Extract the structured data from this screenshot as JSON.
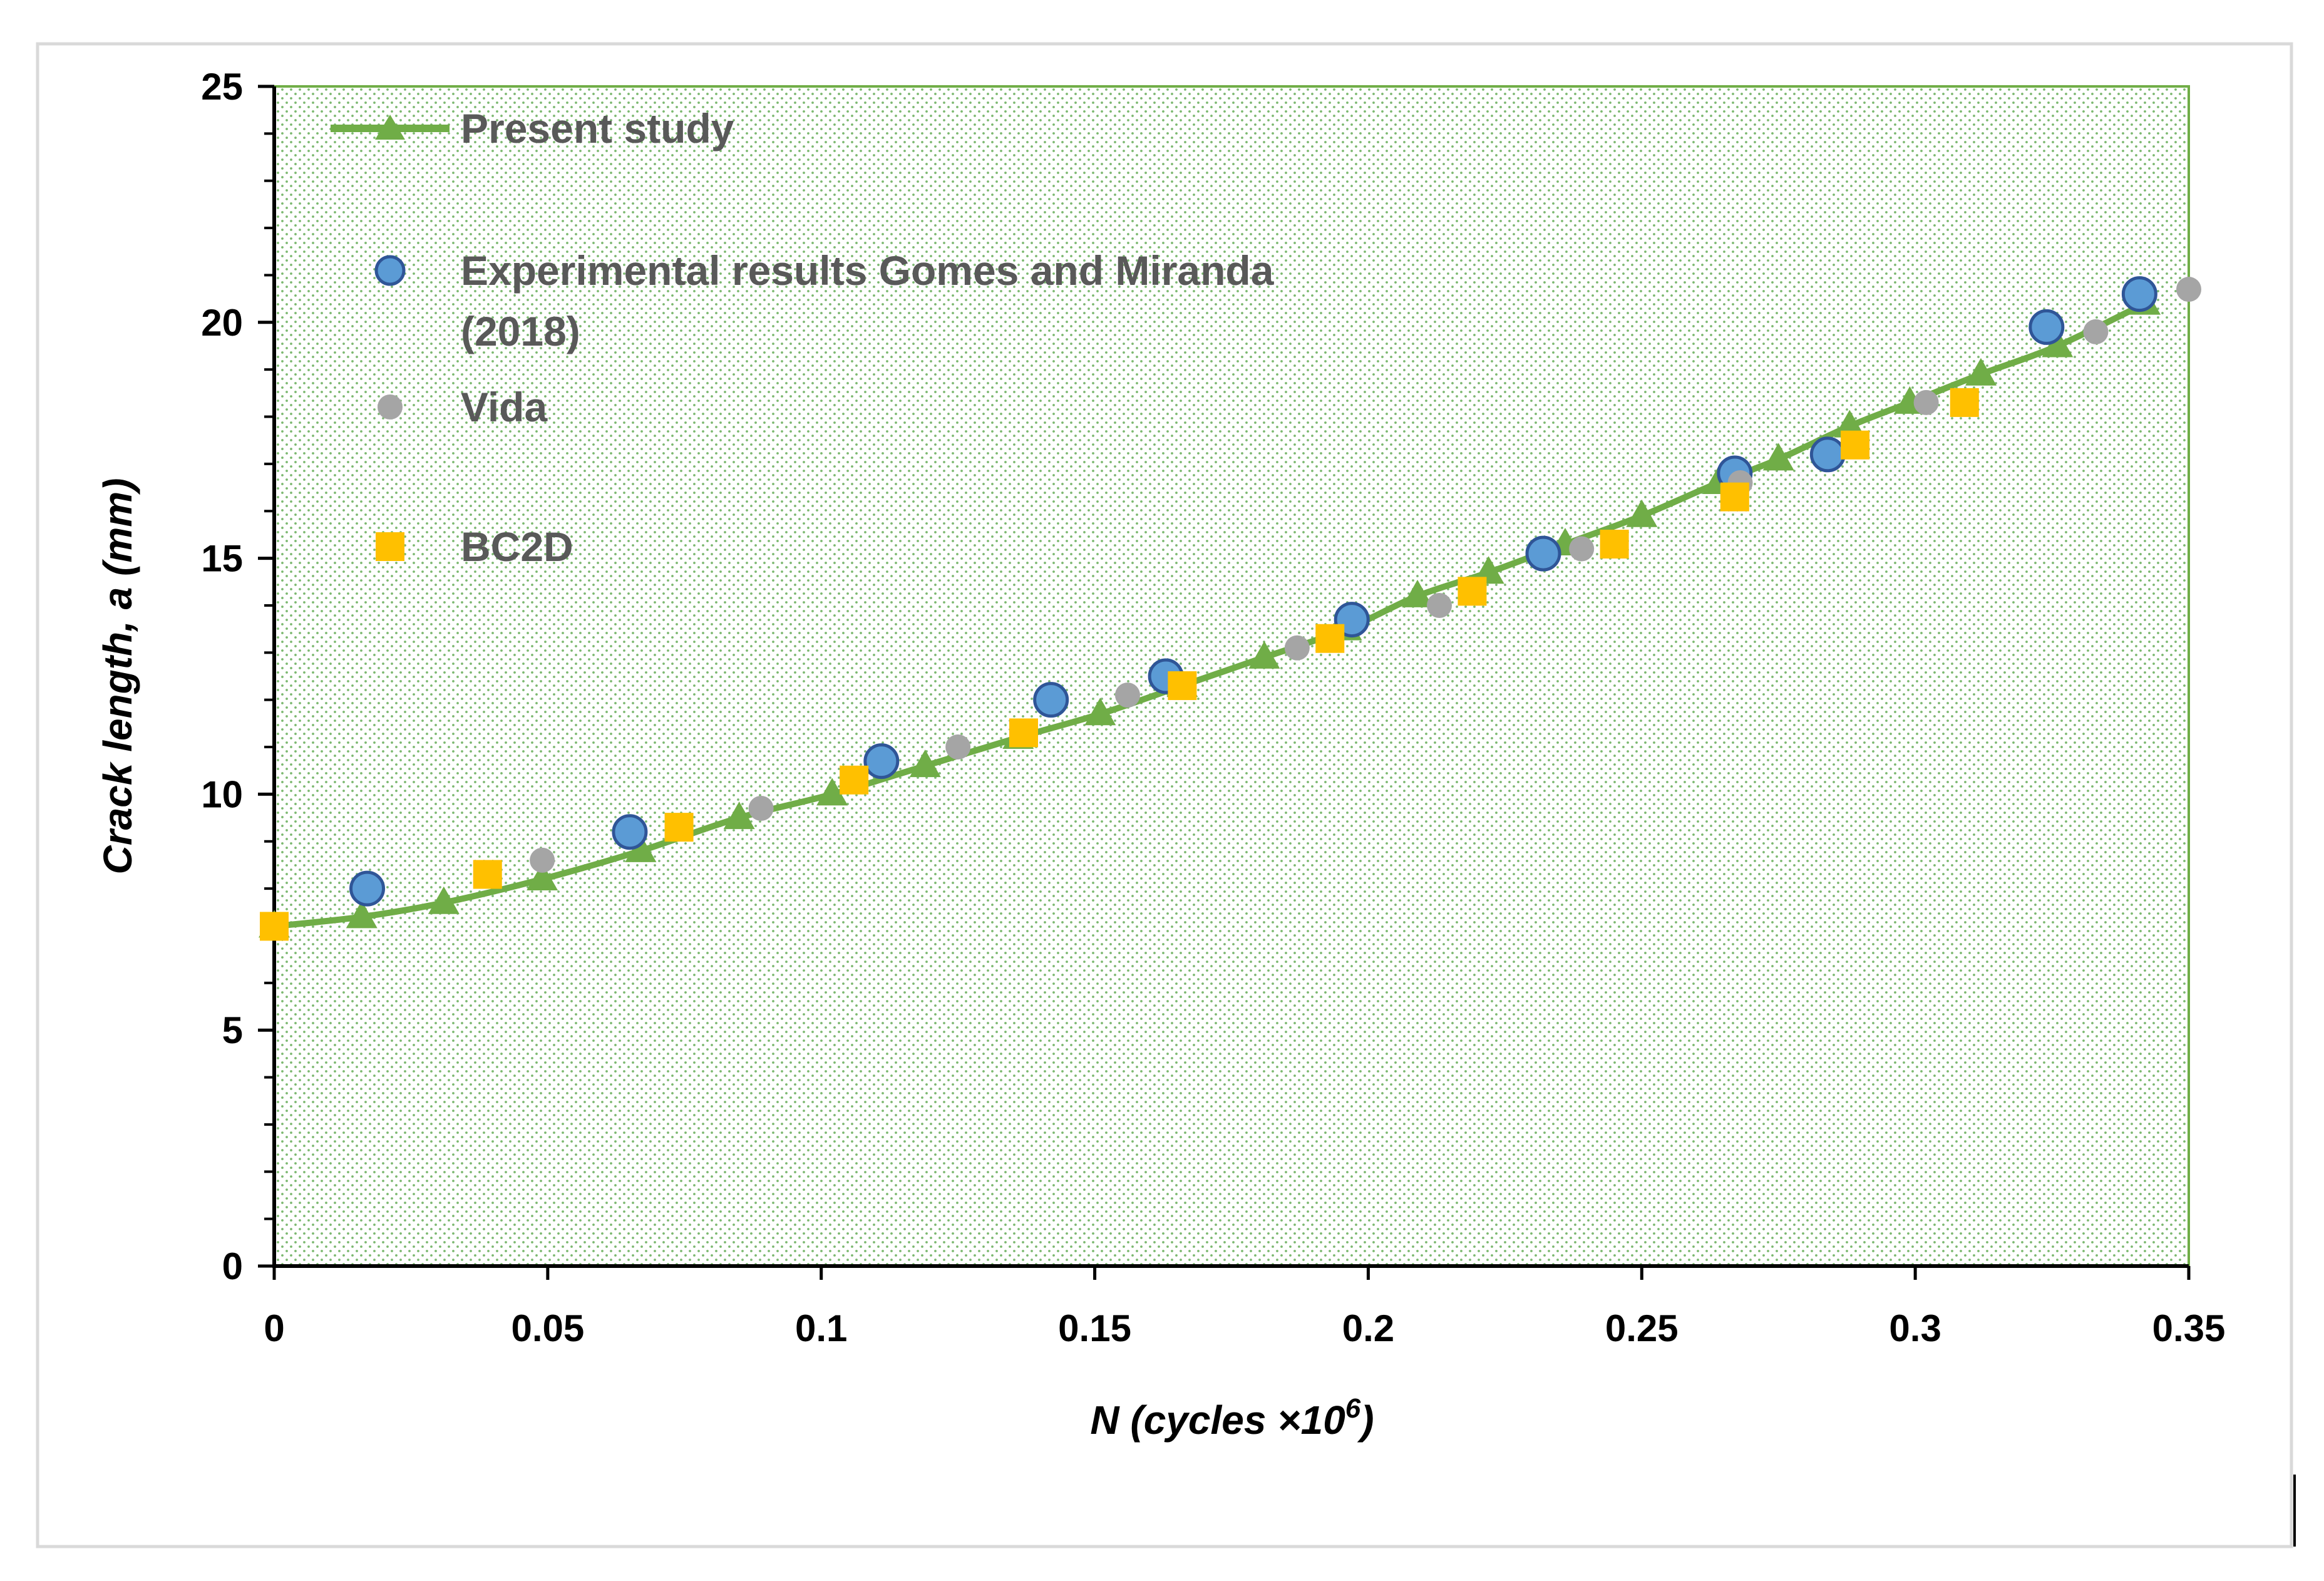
{
  "chart_data": {
    "type": "scatter",
    "title": "",
    "xlabel": "N (cycles ×10",
    "xlabel_superscript": "6",
    "xlabel_suffix": ")",
    "ylabel": "Crack length, a (mm)",
    "xlim": [
      0,
      0.35
    ],
    "ylim": [
      0,
      25
    ],
    "x_ticks": [
      "0",
      "0.05",
      "0.1",
      "0.15",
      "0.2",
      "0.25",
      "0.3",
      "0.35"
    ],
    "x_tick_values": [
      0,
      0.05,
      0.1,
      0.15,
      0.2,
      0.25,
      0.3,
      0.35
    ],
    "y_ticks": [
      "0",
      "5",
      "10",
      "15",
      "20",
      "25"
    ],
    "y_tick_values": [
      0,
      5,
      10,
      15,
      20,
      25
    ],
    "y_minor_step": 1,
    "grid": false,
    "plot_background": "dotted green",
    "legend_position": "top-left",
    "series": [
      {
        "name": "Present study",
        "marker": "triangle",
        "line": true,
        "color": "#70AD47",
        "x": [
          0,
          0.016,
          0.031,
          0.049,
          0.067,
          0.085,
          0.102,
          0.119,
          0.136,
          0.151,
          0.166,
          0.181,
          0.196,
          0.209,
          0.222,
          0.236,
          0.25,
          0.264,
          0.275,
          0.288,
          0.299,
          0.312,
          0.326,
          0.342
        ],
        "y": [
          7.2,
          7.4,
          7.7,
          8.2,
          8.8,
          9.5,
          10.0,
          10.6,
          11.2,
          11.7,
          12.3,
          12.9,
          13.5,
          14.2,
          14.7,
          15.3,
          15.9,
          16.6,
          17.1,
          17.8,
          18.3,
          18.9,
          19.5,
          20.4
        ]
      },
      {
        "name": "Experimental results Gomes and Miranda",
        "name_line2": "(2018)",
        "marker": "circle",
        "line": false,
        "color": "#5B9BD5",
        "x": [
          0.017,
          0.065,
          0.111,
          0.142,
          0.163,
          0.197,
          0.232,
          0.267,
          0.284,
          0.324,
          0.341
        ],
        "y": [
          8.0,
          9.2,
          10.7,
          12.0,
          12.5,
          13.7,
          15.1,
          16.8,
          17.2,
          19.9,
          20.6
        ]
      },
      {
        "name": "Vida",
        "marker": "circle-small",
        "line": false,
        "color": "#A5A5A5",
        "x": [
          0.049,
          0.089,
          0.125,
          0.156,
          0.187,
          0.213,
          0.239,
          0.268,
          0.302,
          0.333,
          0.35
        ],
        "y": [
          8.6,
          9.7,
          11.0,
          12.1,
          13.1,
          14.0,
          15.2,
          16.6,
          18.3,
          19.8,
          20.7
        ]
      },
      {
        "name": "BC2D",
        "marker": "square",
        "line": false,
        "color": "#FFC000",
        "x": [
          0,
          0.039,
          0.074,
          0.106,
          0.137,
          0.166,
          0.193,
          0.219,
          0.245,
          0.267,
          0.289,
          0.309
        ],
        "y": [
          7.2,
          8.3,
          9.3,
          10.3,
          11.3,
          12.3,
          13.3,
          14.3,
          15.3,
          16.3,
          17.4,
          18.3
        ]
      }
    ]
  }
}
